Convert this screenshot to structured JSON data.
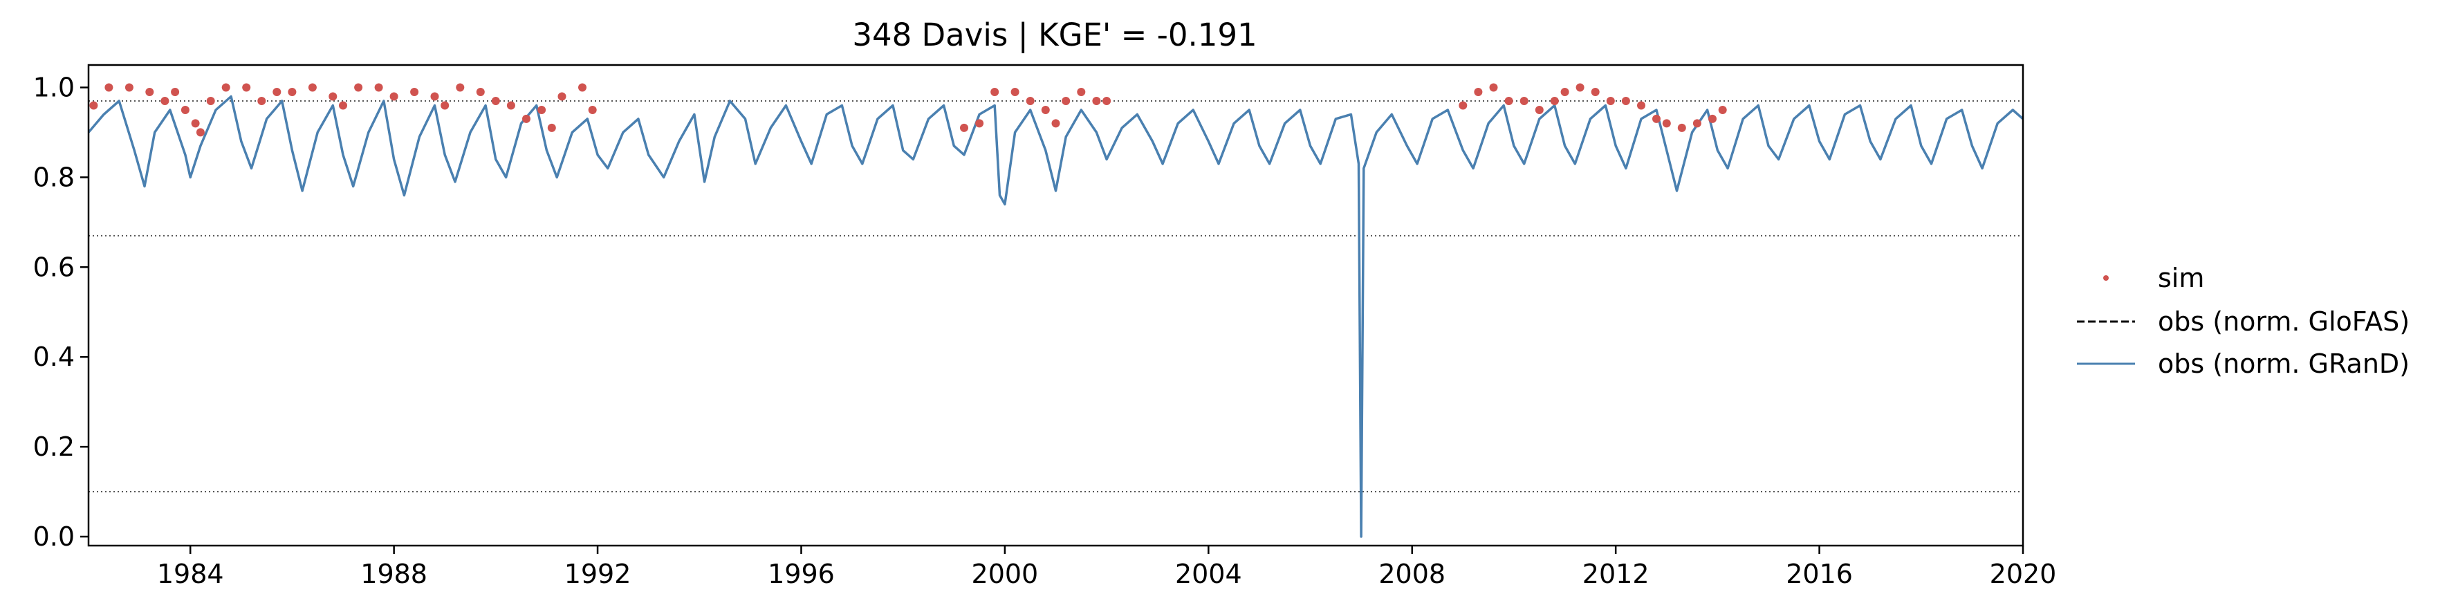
{
  "chart_data": {
    "type": "line",
    "title": "348  Davis | KGE' = -0.191",
    "xlabel": "",
    "ylabel": "",
    "xlim": [
      1982.0,
      2020.0
    ],
    "ylim": [
      -0.02,
      1.05
    ],
    "x_ticks": [
      1984,
      1988,
      1992,
      1996,
      2000,
      2004,
      2008,
      2012,
      2016,
      2020
    ],
    "x_tick_labels": [
      "1984",
      "1988",
      "1992",
      "1996",
      "2000",
      "2004",
      "2008",
      "2012",
      "2016",
      "2020"
    ],
    "y_ticks": [
      0.0,
      0.2,
      0.4,
      0.6,
      0.8,
      1.0
    ],
    "y_tick_labels": [
      "0.0",
      "0.2",
      "0.4",
      "0.6",
      "0.8",
      "1.0"
    ],
    "grid": false,
    "legend_position": "outside-right",
    "reference_lines": [
      {
        "y": 0.97,
        "style": "dotted",
        "color": "#555555"
      },
      {
        "y": 0.67,
        "style": "dotted",
        "color": "#555555"
      },
      {
        "y": 0.1,
        "style": "dotted",
        "color": "#555555"
      }
    ],
    "series": [
      {
        "name": "sim",
        "kind": "scatter",
        "color": "#d0534f",
        "points": [
          [
            1982.1,
            0.96
          ],
          [
            1982.4,
            1.0
          ],
          [
            1982.8,
            1.0
          ],
          [
            1983.2,
            0.99
          ],
          [
            1983.5,
            0.97
          ],
          [
            1983.7,
            0.99
          ],
          [
            1983.9,
            0.95
          ],
          [
            1984.1,
            0.92
          ],
          [
            1984.2,
            0.9
          ],
          [
            1984.4,
            0.97
          ],
          [
            1984.7,
            1.0
          ],
          [
            1985.1,
            1.0
          ],
          [
            1985.4,
            0.97
          ],
          [
            1985.7,
            0.99
          ],
          [
            1986.0,
            0.99
          ],
          [
            1986.4,
            1.0
          ],
          [
            1986.8,
            0.98
          ],
          [
            1987.0,
            0.96
          ],
          [
            1987.3,
            1.0
          ],
          [
            1987.7,
            1.0
          ],
          [
            1988.0,
            0.98
          ],
          [
            1988.4,
            0.99
          ],
          [
            1988.8,
            0.98
          ],
          [
            1989.0,
            0.96
          ],
          [
            1989.3,
            1.0
          ],
          [
            1989.7,
            0.99
          ],
          [
            1990.0,
            0.97
          ],
          [
            1990.3,
            0.96
          ],
          [
            1990.6,
            0.93
          ],
          [
            1990.9,
            0.95
          ],
          [
            1991.1,
            0.91
          ],
          [
            1991.3,
            0.98
          ],
          [
            1991.7,
            1.0
          ],
          [
            1991.9,
            0.95
          ],
          [
            1999.2,
            0.91
          ],
          [
            1999.5,
            0.92
          ],
          [
            1999.8,
            0.99
          ],
          [
            2000.2,
            0.99
          ],
          [
            2000.5,
            0.97
          ],
          [
            2000.8,
            0.95
          ],
          [
            2001.0,
            0.92
          ],
          [
            2001.2,
            0.97
          ],
          [
            2001.5,
            0.99
          ],
          [
            2001.8,
            0.97
          ],
          [
            2002.0,
            0.97
          ],
          [
            2009.0,
            0.96
          ],
          [
            2009.3,
            0.99
          ],
          [
            2009.6,
            1.0
          ],
          [
            2009.9,
            0.97
          ],
          [
            2010.2,
            0.97
          ],
          [
            2010.5,
            0.95
          ],
          [
            2010.8,
            0.97
          ],
          [
            2011.0,
            0.99
          ],
          [
            2011.3,
            1.0
          ],
          [
            2011.6,
            0.99
          ],
          [
            2011.9,
            0.97
          ],
          [
            2012.2,
            0.97
          ],
          [
            2012.5,
            0.96
          ],
          [
            2012.8,
            0.93
          ],
          [
            2013.0,
            0.92
          ],
          [
            2013.3,
            0.91
          ],
          [
            2013.6,
            0.92
          ],
          [
            2013.9,
            0.93
          ],
          [
            2014.1,
            0.95
          ]
        ]
      },
      {
        "name": "obs (norm. GloFAS)",
        "kind": "line",
        "color": "#000000",
        "style": "dashed",
        "points": []
      },
      {
        "name": "obs (norm. GRanD)",
        "kind": "line",
        "color": "#4a80b0",
        "points": [
          [
            1982.0,
            0.9
          ],
          [
            1982.3,
            0.94
          ],
          [
            1982.6,
            0.97
          ],
          [
            1982.9,
            0.86
          ],
          [
            1983.1,
            0.78
          ],
          [
            1983.3,
            0.9
          ],
          [
            1983.6,
            0.95
          ],
          [
            1983.9,
            0.85
          ],
          [
            1984.0,
            0.8
          ],
          [
            1984.2,
            0.87
          ],
          [
            1984.5,
            0.95
          ],
          [
            1984.8,
            0.98
          ],
          [
            1985.0,
            0.88
          ],
          [
            1985.2,
            0.82
          ],
          [
            1985.5,
            0.93
          ],
          [
            1985.8,
            0.97
          ],
          [
            1986.0,
            0.86
          ],
          [
            1986.2,
            0.77
          ],
          [
            1986.5,
            0.9
          ],
          [
            1986.8,
            0.96
          ],
          [
            1987.0,
            0.85
          ],
          [
            1987.2,
            0.78
          ],
          [
            1987.5,
            0.9
          ],
          [
            1987.8,
            0.97
          ],
          [
            1988.0,
            0.84
          ],
          [
            1988.2,
            0.76
          ],
          [
            1988.5,
            0.89
          ],
          [
            1988.8,
            0.96
          ],
          [
            1989.0,
            0.85
          ],
          [
            1989.2,
            0.79
          ],
          [
            1989.5,
            0.9
          ],
          [
            1989.8,
            0.96
          ],
          [
            1990.0,
            0.84
          ],
          [
            1990.2,
            0.8
          ],
          [
            1990.5,
            0.92
          ],
          [
            1990.8,
            0.96
          ],
          [
            1991.0,
            0.86
          ],
          [
            1991.2,
            0.8
          ],
          [
            1991.5,
            0.9
          ],
          [
            1991.8,
            0.93
          ],
          [
            1992.0,
            0.85
          ],
          [
            1992.2,
            0.82
          ],
          [
            1992.5,
            0.9
          ],
          [
            1992.8,
            0.93
          ],
          [
            1993.0,
            0.85
          ],
          [
            1993.3,
            0.8
          ],
          [
            1993.6,
            0.88
          ],
          [
            1993.9,
            0.94
          ],
          [
            1994.1,
            0.79
          ],
          [
            1994.3,
            0.89
          ],
          [
            1994.6,
            0.97
          ],
          [
            1994.9,
            0.93
          ],
          [
            1995.1,
            0.83
          ],
          [
            1995.4,
            0.91
          ],
          [
            1995.7,
            0.96
          ],
          [
            1996.0,
            0.88
          ],
          [
            1996.2,
            0.83
          ],
          [
            1996.5,
            0.94
          ],
          [
            1996.8,
            0.96
          ],
          [
            1997.0,
            0.87
          ],
          [
            1997.2,
            0.83
          ],
          [
            1997.5,
            0.93
          ],
          [
            1997.8,
            0.96
          ],
          [
            1998.0,
            0.86
          ],
          [
            1998.2,
            0.84
          ],
          [
            1998.5,
            0.93
          ],
          [
            1998.8,
            0.96
          ],
          [
            1999.0,
            0.87
          ],
          [
            1999.2,
            0.85
          ],
          [
            1999.5,
            0.94
          ],
          [
            1999.8,
            0.96
          ],
          [
            1999.9,
            0.76
          ],
          [
            2000.0,
            0.74
          ],
          [
            2000.2,
            0.9
          ],
          [
            2000.5,
            0.95
          ],
          [
            2000.8,
            0.86
          ],
          [
            2001.0,
            0.77
          ],
          [
            2001.2,
            0.89
          ],
          [
            2001.5,
            0.95
          ],
          [
            2001.8,
            0.9
          ],
          [
            2002.0,
            0.84
          ],
          [
            2002.3,
            0.91
          ],
          [
            2002.6,
            0.94
          ],
          [
            2002.9,
            0.88
          ],
          [
            2003.1,
            0.83
          ],
          [
            2003.4,
            0.92
          ],
          [
            2003.7,
            0.95
          ],
          [
            2004.0,
            0.88
          ],
          [
            2004.2,
            0.83
          ],
          [
            2004.5,
            0.92
          ],
          [
            2004.8,
            0.95
          ],
          [
            2005.0,
            0.87
          ],
          [
            2005.2,
            0.83
          ],
          [
            2005.5,
            0.92
          ],
          [
            2005.8,
            0.95
          ],
          [
            2006.0,
            0.87
          ],
          [
            2006.2,
            0.83
          ],
          [
            2006.5,
            0.93
          ],
          [
            2006.8,
            0.94
          ],
          [
            2006.95,
            0.83
          ],
          [
            2007.0,
            0.0
          ],
          [
            2007.05,
            0.82
          ],
          [
            2007.3,
            0.9
          ],
          [
            2007.6,
            0.94
          ],
          [
            2007.9,
            0.87
          ],
          [
            2008.1,
            0.83
          ],
          [
            2008.4,
            0.93
          ],
          [
            2008.7,
            0.95
          ],
          [
            2009.0,
            0.86
          ],
          [
            2009.2,
            0.82
          ],
          [
            2009.5,
            0.92
          ],
          [
            2009.8,
            0.96
          ],
          [
            2010.0,
            0.87
          ],
          [
            2010.2,
            0.83
          ],
          [
            2010.5,
            0.93
          ],
          [
            2010.8,
            0.96
          ],
          [
            2011.0,
            0.87
          ],
          [
            2011.2,
            0.83
          ],
          [
            2011.5,
            0.93
          ],
          [
            2011.8,
            0.96
          ],
          [
            2012.0,
            0.87
          ],
          [
            2012.2,
            0.82
          ],
          [
            2012.5,
            0.93
          ],
          [
            2012.8,
            0.95
          ],
          [
            2013.0,
            0.86
          ],
          [
            2013.2,
            0.77
          ],
          [
            2013.5,
            0.9
          ],
          [
            2013.8,
            0.95
          ],
          [
            2014.0,
            0.86
          ],
          [
            2014.2,
            0.82
          ],
          [
            2014.5,
            0.93
          ],
          [
            2014.8,
            0.96
          ],
          [
            2015.0,
            0.87
          ],
          [
            2015.2,
            0.84
          ],
          [
            2015.5,
            0.93
          ],
          [
            2015.8,
            0.96
          ],
          [
            2016.0,
            0.88
          ],
          [
            2016.2,
            0.84
          ],
          [
            2016.5,
            0.94
          ],
          [
            2016.8,
            0.96
          ],
          [
            2017.0,
            0.88
          ],
          [
            2017.2,
            0.84
          ],
          [
            2017.5,
            0.93
          ],
          [
            2017.8,
            0.96
          ],
          [
            2018.0,
            0.87
          ],
          [
            2018.2,
            0.83
          ],
          [
            2018.5,
            0.93
          ],
          [
            2018.8,
            0.95
          ],
          [
            2019.0,
            0.87
          ],
          [
            2019.2,
            0.82
          ],
          [
            2019.5,
            0.92
          ],
          [
            2019.8,
            0.95
          ],
          [
            2020.0,
            0.93
          ]
        ]
      }
    ]
  }
}
